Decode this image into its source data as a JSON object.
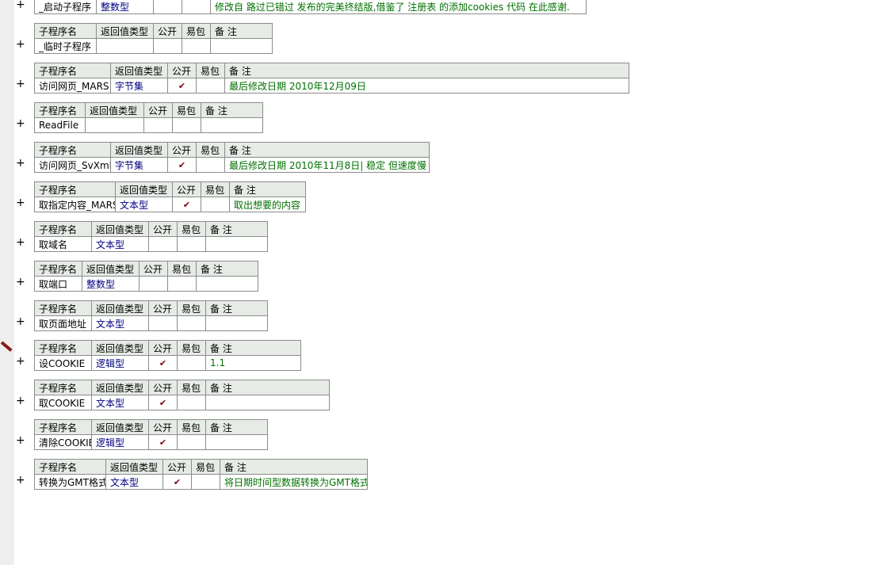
{
  "headers": {
    "name": "子程序名",
    "type": "返回值类型",
    "public": "公开",
    "easy": "易包",
    "note": "备 注"
  },
  "plus_symbol": "+",
  "check_symbol": "✔",
  "blocks": [
    {
      "name": "_启动子程序",
      "type": "整数型",
      "public": false,
      "note": "修改自 路过已错过 发布的完美终结版,借鉴了 注册表 的添加cookies 代码 在此感谢."
    },
    {
      "name": "_临时子程序",
      "type": "",
      "public": false,
      "note": ""
    },
    {
      "name": "访问网页_MARS",
      "type": "字节集",
      "public": true,
      "note": "最后修改日期 2010年12月09日"
    },
    {
      "name": "ReadFile",
      "type": "",
      "public": false,
      "note": ""
    },
    {
      "name": "访问网页_SvXml",
      "type": "字节集",
      "public": true,
      "note": "最后修改日期 2010年11月8日| 稳定 但速度慢"
    },
    {
      "name": "取指定内容_MARS",
      "type": "文本型",
      "public": true,
      "note": "取出想要的内容"
    },
    {
      "name": "取域名",
      "type": "文本型",
      "public": false,
      "note": ""
    },
    {
      "name": "取端口",
      "type": "整数型",
      "public": false,
      "note": ""
    },
    {
      "name": "取页面地址",
      "type": "文本型",
      "public": false,
      "note": ""
    },
    {
      "name": "设COOKIE",
      "type": "逻辑型",
      "public": true,
      "note": "1.1"
    },
    {
      "name": "取COOKIE",
      "type": "文本型",
      "public": true,
      "note": ""
    },
    {
      "name": "清除COOKIE",
      "type": "逻辑型",
      "public": true,
      "note": ""
    },
    {
      "name": "转换为GMT格式",
      "type": "文本型",
      "public": true,
      "note": "将日期时间型数据转换为GMT格式"
    }
  ]
}
